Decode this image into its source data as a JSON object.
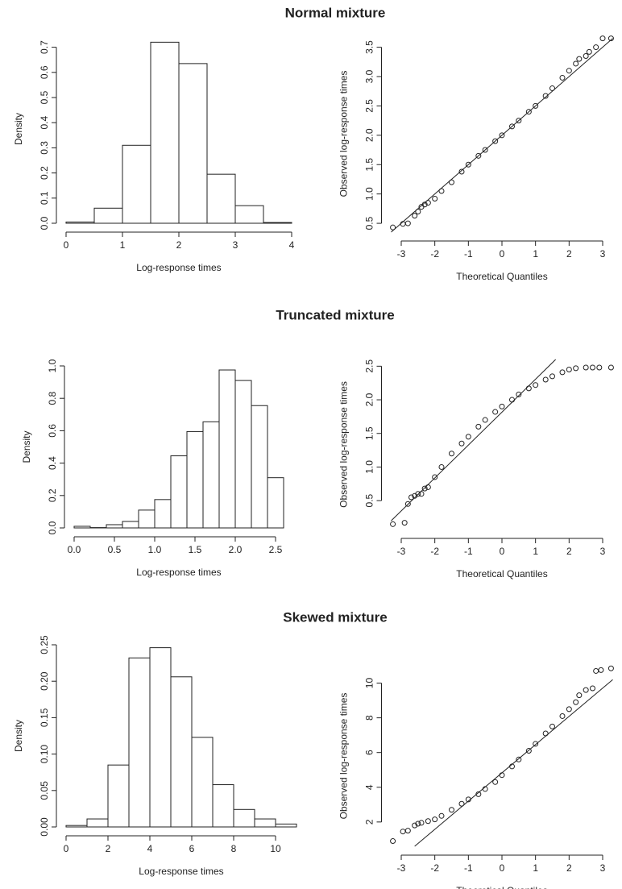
{
  "chart_data": [
    {
      "type": "histogram",
      "title": "Normal mixture",
      "xlabel": "Log-response times",
      "ylabel": "Density",
      "bins": [
        0,
        0.5,
        1,
        1.5,
        2,
        2.5,
        3,
        3.5,
        4
      ],
      "counts": [
        0.005,
        0.06,
        0.31,
        0.72,
        0.635,
        0.195,
        0.07,
        0.003
      ],
      "xlim": [
        0,
        4
      ],
      "ylim": [
        0,
        0.75
      ],
      "xticks": [
        0,
        1,
        2,
        3,
        4
      ],
      "yticks": [
        {
          "value": 0,
          "label": "0.0"
        },
        0.1,
        0.2,
        0.3,
        0.4,
        0.5,
        0.6,
        0.7
      ],
      "color": "#ffffff"
    },
    {
      "type": "qq",
      "xlabel": "Theoretical Quantiles",
      "ylabel": "Observed log-response times",
      "x": [
        -3.25,
        -2.95,
        -2.8,
        -2.6,
        -2.5,
        -2.4,
        -2.3,
        -2.2,
        -2.0,
        -1.8,
        -1.5,
        -1.2,
        -1,
        -0.7,
        -0.5,
        -0.2,
        0,
        0.3,
        0.5,
        0.8,
        1,
        1.3,
        1.5,
        1.8,
        2.0,
        2.2,
        2.3,
        2.5,
        2.6,
        2.8,
        3.0,
        3.25
      ],
      "values": [
        0.43,
        0.49,
        0.5,
        0.63,
        0.7,
        0.78,
        0.82,
        0.85,
        0.92,
        1.05,
        1.2,
        1.38,
        1.5,
        1.65,
        1.75,
        1.9,
        2.0,
        2.15,
        2.25,
        2.4,
        2.5,
        2.67,
        2.8,
        2.98,
        3.1,
        3.22,
        3.3,
        3.35,
        3.42,
        3.5,
        3.65,
        3.65
      ],
      "reference_line": {
        "x": [
          -3.3,
          3.3
        ],
        "values": [
          0.35,
          3.65
        ]
      },
      "xlim": [
        -3.3,
        3.3
      ],
      "ylim": [
        0.35,
        3.7
      ],
      "xticks": [
        -3,
        -2,
        -1,
        0,
        1,
        2,
        3
      ],
      "yticks": [
        0.5,
        {
          "value": 1,
          "label": "1.0"
        },
        1.5,
        {
          "value": 2,
          "label": "2.0"
        },
        2.5,
        {
          "value": 3,
          "label": "3.0"
        },
        3.5
      ]
    },
    {
      "type": "histogram",
      "title": "Truncated mixture",
      "xlabel": "Log-response times",
      "ylabel": "Density",
      "bins": [
        0,
        0.2,
        0.4,
        0.6,
        0.8,
        1.0,
        1.2,
        1.4,
        1.6,
        1.8,
        2.0,
        2.2,
        2.4,
        2.6
      ],
      "counts": [
        0.01,
        0.002,
        0.02,
        0.04,
        0.11,
        0.175,
        0.445,
        0.595,
        0.655,
        0.975,
        0.91,
        0.755,
        0.31
      ],
      "xlim": [
        0,
        2.6
      ],
      "ylim": [
        0,
        1.0
      ],
      "xticks": [
        {
          "value": 0,
          "label": "0.0"
        },
        0.5,
        {
          "value": 1,
          "label": "1.0"
        },
        1.5,
        {
          "value": 2,
          "label": "2.0"
        },
        2.5
      ],
      "yticks": [
        {
          "value": 0,
          "label": "0.0"
        },
        0.2,
        0.4,
        0.6,
        0.8,
        {
          "value": 1,
          "label": "1.0"
        }
      ],
      "color": "#ffffff"
    },
    {
      "type": "qq",
      "xlabel": "Theoretical Quantiles",
      "ylabel": "Observed log-response times",
      "x": [
        -3.25,
        -2.9,
        -2.8,
        -2.7,
        -2.6,
        -2.5,
        -2.4,
        -2.3,
        -2.2,
        -2.0,
        -1.8,
        -1.5,
        -1.2,
        -1,
        -0.7,
        -0.5,
        -0.2,
        0,
        0.3,
        0.5,
        0.8,
        1,
        1.3,
        1.5,
        1.8,
        2,
        2.2,
        2.5,
        2.7,
        2.9,
        3.25
      ],
      "values": [
        0.15,
        0.17,
        0.45,
        0.55,
        0.57,
        0.6,
        0.6,
        0.68,
        0.7,
        0.85,
        1.0,
        1.2,
        1.35,
        1.45,
        1.6,
        1.7,
        1.82,
        1.9,
        2.0,
        2.08,
        2.17,
        2.22,
        2.3,
        2.35,
        2.41,
        2.45,
        2.47,
        2.48,
        2.48,
        2.48,
        2.48
      ],
      "reference_line": {
        "x": [
          -3.3,
          1.6
        ],
        "values": [
          0.2,
          2.6
        ]
      },
      "xlim": [
        -3.3,
        3.3
      ],
      "ylim": [
        0.07,
        2.6
      ],
      "xticks": [
        -3,
        -2,
        -1,
        0,
        1,
        2,
        3
      ],
      "yticks": [
        0.5,
        {
          "value": 1,
          "label": "1.0"
        },
        1.5,
        {
          "value": 2,
          "label": "2.0"
        },
        2.5
      ]
    },
    {
      "type": "histogram",
      "title": "Skewed mixture",
      "xlabel": "Log-response times",
      "ylabel": "Density",
      "bins": [
        0,
        1,
        2,
        3,
        4,
        5,
        6,
        7,
        8,
        9,
        10,
        11
      ],
      "counts": [
        0.002,
        0.011,
        0.085,
        0.232,
        0.246,
        0.206,
        0.123,
        0.058,
        0.024,
        0.011,
        0.004
      ],
      "xlim": [
        0,
        11
      ],
      "ylim": [
        0,
        0.25
      ],
      "xticks": [
        0,
        2,
        4,
        6,
        8,
        10
      ],
      "yticks": [
        {
          "value": 0,
          "label": "0.00"
        },
        0.05,
        {
          "value": 0.1,
          "label": "0.10"
        },
        0.15,
        {
          "value": 0.2,
          "label": "0.20"
        },
        0.25
      ],
      "color": "#ffffff"
    },
    {
      "type": "qq",
      "xlabel": "Theoretical Quantiles",
      "ylabel": "Observed log-response times",
      "x": [
        -3.25,
        -2.95,
        -2.8,
        -2.6,
        -2.5,
        -2.4,
        -2.2,
        -2.0,
        -1.8,
        -1.5,
        -1.2,
        -1,
        -0.7,
        -0.5,
        -0.2,
        0,
        0.3,
        0.5,
        0.8,
        1,
        1.3,
        1.5,
        1.8,
        2,
        2.2,
        2.3,
        2.5,
        2.7,
        2.8,
        2.95,
        3.25
      ],
      "values": [
        0.9,
        1.45,
        1.5,
        1.8,
        1.9,
        1.95,
        2.05,
        2.15,
        2.35,
        2.7,
        3.05,
        3.3,
        3.6,
        3.9,
        4.3,
        4.7,
        5.2,
        5.6,
        6.1,
        6.5,
        7.1,
        7.5,
        8.1,
        8.5,
        8.9,
        9.3,
        9.6,
        9.7,
        10.7,
        10.75,
        10.85
      ],
      "reference_line": {
        "x": [
          -2.6,
          3.3
        ],
        "values": [
          0.6,
          10.2
        ]
      },
      "xlim": [
        -3.3,
        3.3
      ],
      "ylim": [
        0.6,
        11
      ],
      "xticks": [
        -3,
        -2,
        -1,
        0,
        1,
        2,
        3
      ],
      "yticks": [
        2,
        4,
        6,
        8,
        10
      ]
    }
  ]
}
